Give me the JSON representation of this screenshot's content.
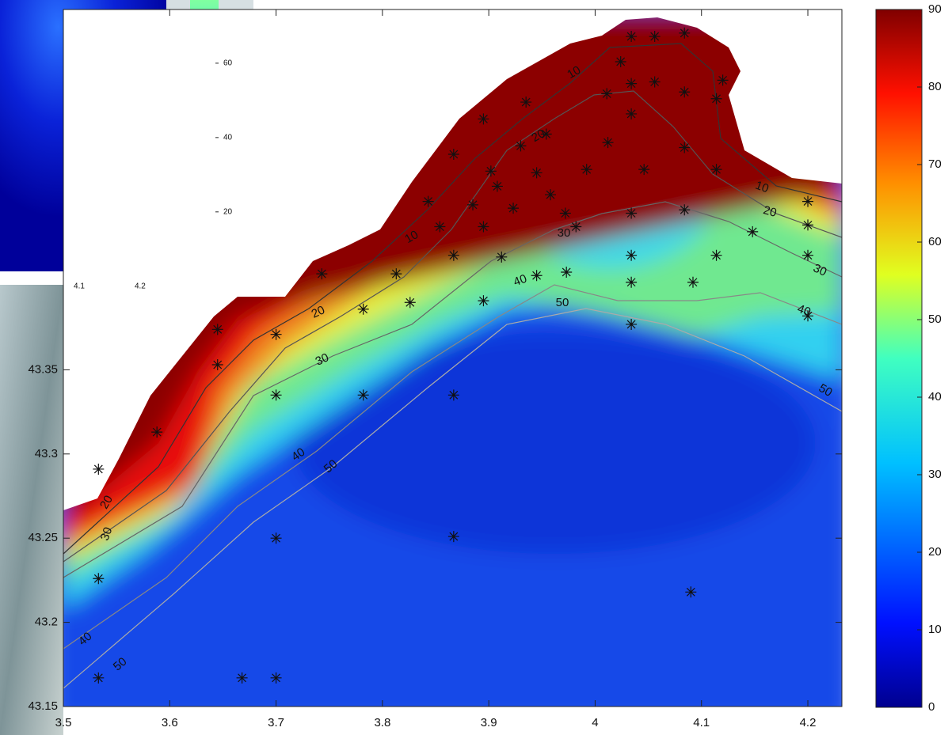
{
  "chart_data": [
    {
      "type": "scatter",
      "x": [
        3.533,
        3.588,
        3.645,
        3.645,
        3.7,
        3.7,
        3.7,
        3.7,
        3.668,
        3.533,
        3.533,
        3.782,
        3.782,
        3.743,
        3.813,
        3.826,
        3.843,
        3.854,
        3.867,
        3.867,
        3.867,
        3.867,
        3.885,
        3.895,
        3.895,
        3.895,
        3.902,
        3.908,
        3.912,
        3.923,
        3.93,
        3.935,
        3.945,
        3.954,
        3.958,
        3.972,
        3.973,
        3.945,
        3.982,
        3.992,
        4.012,
        4.011,
        4.034,
        4.034,
        4.046,
        4.034,
        4.034,
        4.034,
        4.034,
        4.056,
        4.084,
        4.084,
        4.084,
        4.092,
        4.114,
        4.114,
        4.114,
        4.148,
        4.2,
        4.2,
        4.2,
        4.2,
        4.09,
        4.024,
        4.034,
        4.056,
        4.084,
        4.12
      ],
      "values": [
        43.291,
        43.313,
        43.353,
        43.374,
        43.371,
        43.335,
        43.25,
        43.167,
        43.167,
        43.226,
        43.167,
        43.386,
        43.335,
        43.407,
        43.407,
        43.39,
        43.45,
        43.435,
        43.418,
        43.478,
        43.335,
        43.251,
        43.448,
        43.435,
        43.391,
        43.499,
        43.468,
        43.459,
        43.417,
        43.446,
        43.483,
        43.509,
        43.467,
        43.49,
        43.454,
        43.443,
        43.408,
        43.406,
        43.435,
        43.469,
        43.485,
        43.514,
        43.52,
        43.502,
        43.469,
        43.443,
        43.418,
        43.402,
        43.377,
        43.521,
        43.515,
        43.482,
        43.445,
        43.402,
        43.511,
        43.469,
        43.418,
        43.432,
        43.45,
        43.436,
        43.418,
        43.382,
        43.218,
        43.533,
        43.548,
        43.548,
        43.55,
        43.522
      ],
      "xlim": [
        3.5,
        4.232
      ],
      "ylim": [
        43.15,
        43.564
      ],
      "xticks": [
        3.5,
        3.6,
        3.7,
        3.8,
        3.9,
        4,
        4.1,
        4.2
      ],
      "yticks": [
        43.15,
        43.2,
        43.25,
        43.3,
        43.35
      ],
      "clim": [
        0,
        90
      ],
      "cticks": [
        0,
        10,
        20,
        30,
        40,
        50,
        60,
        70,
        80,
        90
      ],
      "contour_levels": [
        10,
        20,
        30,
        40,
        50
      ]
    },
    {
      "type": "heatmap",
      "xlim": [
        3.97,
        4.243
      ],
      "xticks": [
        4.1,
        4.2
      ],
      "clim": [
        4,
        77
      ],
      "cticks": [
        20,
        40,
        60
      ]
    }
  ]
}
